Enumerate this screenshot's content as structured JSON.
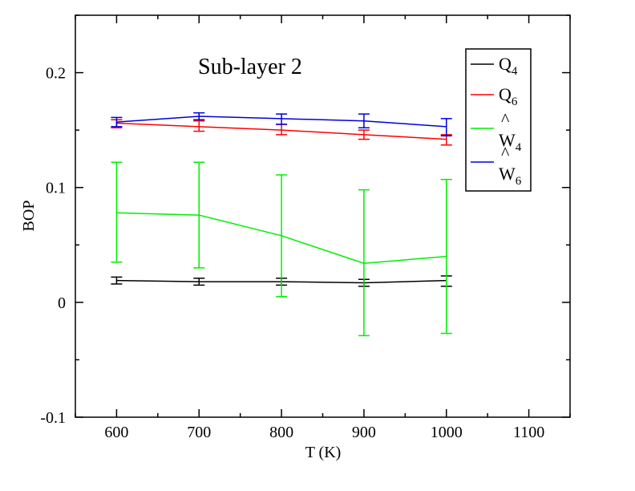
{
  "chart_data": {
    "type": "line",
    "title": "Sub-layer 2",
    "xlabel": "T (K)",
    "ylabel": "BOP",
    "xlim": [
      550,
      1150
    ],
    "ylim": [
      -0.1,
      0.25
    ],
    "x_ticks": [
      600,
      700,
      800,
      900,
      1000,
      1100
    ],
    "x_tick_labels": [
      "600",
      "700",
      "800",
      "900",
      "1000",
      "1100"
    ],
    "y_ticks": [
      -0.1,
      0,
      0.1,
      0.2
    ],
    "y_tick_labels": [
      "-0.1",
      "0",
      "0.1",
      "0.2"
    ],
    "grid": false,
    "legend_position": "top-right",
    "x": [
      600,
      700,
      800,
      900,
      1000
    ],
    "series": [
      {
        "name": "Q4",
        "legend_main": "Q",
        "legend_sub": "4",
        "legend_hat": "",
        "color": "#000000",
        "values": [
          0.019,
          0.018,
          0.018,
          0.017,
          0.019
        ],
        "err_low": [
          0.016,
          0.015,
          0.015,
          0.014,
          0.014
        ],
        "err_high": [
          0.022,
          0.021,
          0.021,
          0.02,
          0.023
        ]
      },
      {
        "name": "Q6",
        "legend_main": "Q",
        "legend_sub": "6",
        "legend_hat": "",
        "color": "#ff0000",
        "values": [
          0.156,
          0.153,
          0.15,
          0.146,
          0.142
        ],
        "err_low": [
          0.152,
          0.149,
          0.146,
          0.142,
          0.137
        ],
        "err_high": [
          0.159,
          0.158,
          0.155,
          0.15,
          0.146
        ]
      },
      {
        "name": "W4",
        "legend_main": "W",
        "legend_sub": "4",
        "legend_hat": "^",
        "color": "#00ee00",
        "values": [
          0.078,
          0.076,
          0.058,
          0.034,
          0.04
        ],
        "err_low": [
          0.035,
          0.03,
          0.005,
          -0.029,
          -0.027
        ],
        "err_high": [
          0.122,
          0.122,
          0.111,
          0.098,
          0.107
        ]
      },
      {
        "name": "W6",
        "legend_main": "W",
        "legend_sub": "6",
        "legend_hat": "^",
        "color": "#0000dd",
        "values": [
          0.157,
          0.162,
          0.16,
          0.158,
          0.153
        ],
        "err_low": [
          0.153,
          0.159,
          0.155,
          0.152,
          0.145
        ],
        "err_high": [
          0.161,
          0.165,
          0.164,
          0.164,
          0.16
        ]
      }
    ]
  }
}
